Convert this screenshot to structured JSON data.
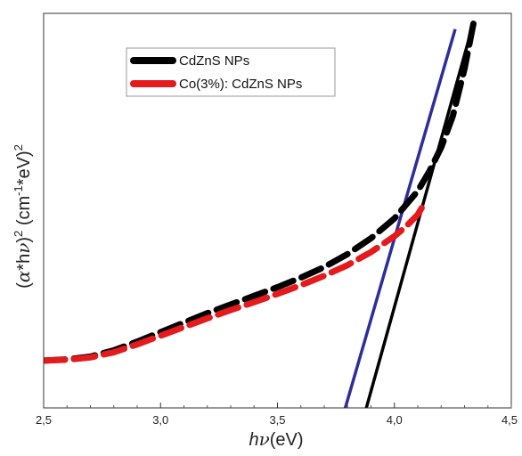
{
  "chart_data": {
    "type": "line",
    "xlabel": "hν(eV)",
    "ylabel": "(α*hν)2 (cm-1*eV)2",
    "xlim": [
      2.5,
      4.5
    ],
    "ylim": [
      0,
      1
    ],
    "x_tick_labels": [
      "2,5",
      "3,0",
      "3,5",
      "4,0",
      "4,5"
    ],
    "y_ticks_labeled": false,
    "grid": false,
    "legend_position": "top-center",
    "series": [
      {
        "name": "CdZnS NPs",
        "color": "#000000",
        "style": "dashed",
        "x": [
          2.5,
          2.6,
          2.7,
          2.8,
          2.9,
          3.0,
          3.1,
          3.2,
          3.3,
          3.4,
          3.5,
          3.6,
          3.7,
          3.8,
          3.9,
          4.0,
          4.1,
          4.15,
          4.2,
          4.25,
          4.3,
          4.34
        ],
        "y": [
          0.12,
          0.123,
          0.13,
          0.146,
          0.168,
          0.192,
          0.216,
          0.24,
          0.262,
          0.284,
          0.306,
          0.33,
          0.357,
          0.39,
          0.43,
          0.48,
          0.55,
          0.6,
          0.66,
          0.74,
          0.86,
          0.98
        ]
      },
      {
        "name": "Co(3%): CdZnS NPs",
        "color": "#e41a1c",
        "style": "dashed",
        "x": [
          2.5,
          2.6,
          2.7,
          2.8,
          2.9,
          3.0,
          3.1,
          3.2,
          3.3,
          3.4,
          3.5,
          3.6,
          3.7,
          3.8,
          3.9,
          4.0,
          4.05,
          4.1,
          4.13
        ],
        "y": [
          0.12,
          0.122,
          0.128,
          0.141,
          0.161,
          0.183,
          0.205,
          0.227,
          0.248,
          0.268,
          0.289,
          0.311,
          0.335,
          0.362,
          0.395,
          0.435,
          0.46,
          0.49,
          0.52
        ]
      }
    ],
    "fit_lines": [
      {
        "color": "#000000",
        "x": [
          3.88,
          4.34
        ],
        "y": [
          0,
          0.98
        ]
      },
      {
        "color": "#2e2e9a",
        "x": [
          3.79,
          4.26
        ],
        "y": [
          0,
          0.96
        ]
      }
    ]
  }
}
